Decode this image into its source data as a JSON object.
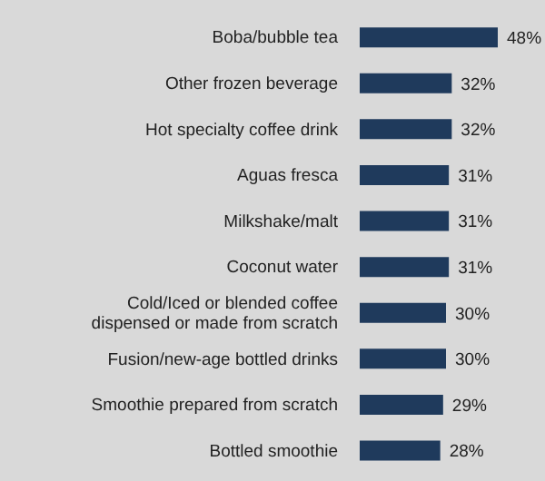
{
  "chart_data": {
    "type": "bar",
    "orientation": "horizontal",
    "categories": [
      "Boba/bubble tea",
      "Other frozen beverage",
      "Hot specialty coffee drink",
      "Aguas fresca",
      "Milkshake/malt",
      "Coconut water",
      "Cold/Iced or blended coffee dispensed or made from scratch",
      "Fusion/new-age bottled drinks",
      "Smoothie prepared from scratch",
      "Bottled smoothie"
    ],
    "values": [
      48,
      32,
      32,
      31,
      31,
      31,
      30,
      30,
      29,
      28
    ],
    "value_labels": [
      "48%",
      "32%",
      "32%",
      "31%",
      "31%",
      "31%",
      "30%",
      "30%",
      "29%",
      "28%"
    ],
    "color": "#1f3a5c"
  }
}
